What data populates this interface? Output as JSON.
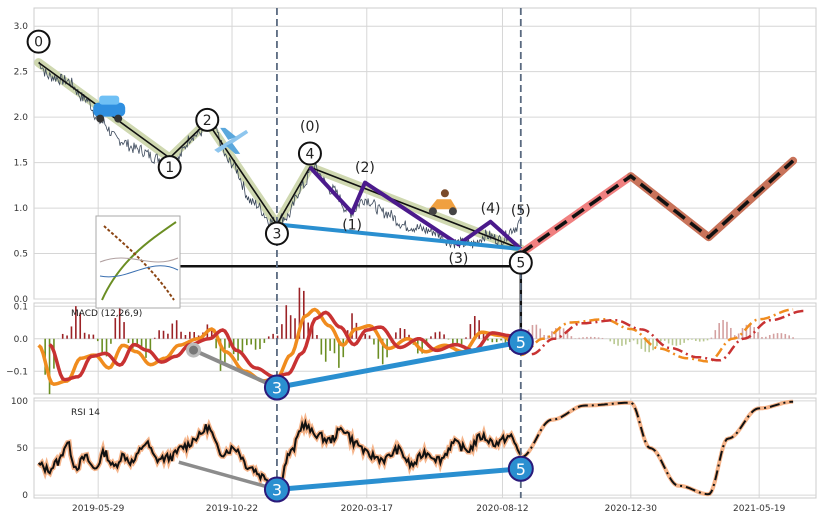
{
  "chart_data": [
    {
      "type": "line",
      "panel": "price",
      "ylim": [
        0,
        3.2
      ],
      "yticks": [
        "0.0",
        "0.5",
        "1.0",
        "1.5",
        "2.0",
        "2.5",
        "3.0"
      ],
      "x_range": [
        "2019-03-20",
        "2021-07-20"
      ],
      "xtick_labels": [
        "2019-05-29",
        "2019-10-22",
        "2020-03-17",
        "2020-08-12",
        "2020-12-30",
        "2021-05-19"
      ],
      "xtick_dates": [
        "2019-05-29",
        "2019-10-22",
        "2020-03-17",
        "2020-08-12",
        "2020-12-30",
        "2021-05-19"
      ],
      "vlines": [
        "2019-12-10",
        "2020-09-01"
      ],
      "price_anchors": [
        {
          "x": "2019-03-25",
          "y": 2.6
        },
        {
          "x": "2019-04-05",
          "y": 2.45
        },
        {
          "x": "2019-04-25",
          "y": 2.4
        },
        {
          "x": "2019-05-15",
          "y": 2.2
        },
        {
          "x": "2019-06-01",
          "y": 1.95
        },
        {
          "x": "2019-06-20",
          "y": 1.75
        },
        {
          "x": "2019-07-10",
          "y": 1.65
        },
        {
          "x": "2019-08-01",
          "y": 1.55
        },
        {
          "x": "2019-08-20",
          "y": 1.5
        },
        {
          "x": "2019-09-10",
          "y": 1.8
        },
        {
          "x": "2019-09-30",
          "y": 1.9
        },
        {
          "x": "2019-10-20",
          "y": 1.5
        },
        {
          "x": "2019-11-15",
          "y": 1.05
        },
        {
          "x": "2019-12-05",
          "y": 0.85
        },
        {
          "x": "2019-12-20",
          "y": 0.9
        },
        {
          "x": "2020-01-08",
          "y": 1.25
        },
        {
          "x": "2020-01-18",
          "y": 1.45
        },
        {
          "x": "2020-02-08",
          "y": 1.2
        },
        {
          "x": "2020-02-28",
          "y": 0.95
        },
        {
          "x": "2020-03-15",
          "y": 1.1
        },
        {
          "x": "2020-04-05",
          "y": 0.95
        },
        {
          "x": "2020-05-01",
          "y": 0.8
        },
        {
          "x": "2020-05-25",
          "y": 0.75
        },
        {
          "x": "2020-06-20",
          "y": 0.62
        },
        {
          "x": "2020-07-10",
          "y": 0.6
        },
        {
          "x": "2020-07-25",
          "y": 0.7
        },
        {
          "x": "2020-08-10",
          "y": 0.65
        },
        {
          "x": "2020-08-25",
          "y": 0.78
        },
        {
          "x": "2020-09-01",
          "y": 0.85
        }
      ],
      "wave_main": [
        {
          "x": "2019-03-25",
          "y": 2.6
        },
        {
          "x": "2019-08-15",
          "y": 1.55
        },
        {
          "x": "2019-09-25",
          "y": 1.95
        },
        {
          "x": "2019-12-10",
          "y": 0.82
        },
        {
          "x": "2020-01-15",
          "y": 1.45
        },
        {
          "x": "2020-09-01",
          "y": 0.55
        }
      ],
      "wave_sub": [
        {
          "x": "2020-01-15",
          "y": 1.45
        },
        {
          "x": "2020-03-01",
          "y": 0.95
        },
        {
          "x": "2020-03-15",
          "y": 1.28
        },
        {
          "x": "2020-06-25",
          "y": 0.6
        },
        {
          "x": "2020-07-30",
          "y": 0.85
        },
        {
          "x": "2020-09-01",
          "y": 0.55
        }
      ],
      "wave_channel": [
        {
          "x": "2019-12-10",
          "y": 0.82
        },
        {
          "x": "2020-09-01",
          "y": 0.55
        }
      ],
      "projection": [
        {
          "x": "2020-09-01",
          "y": 0.5
        },
        {
          "x": "2020-12-30",
          "y": 1.35
        },
        {
          "x": "2021-03-25",
          "y": 0.68
        },
        {
          "x": "2021-06-25",
          "y": 1.52
        }
      ],
      "hline": {
        "x_from": "2019-07-05",
        "x_to": "2020-09-01",
        "y": 0.36
      },
      "wave_labels": [
        {
          "x": "2019-03-25",
          "y": 2.83,
          "text": "0",
          "circle": true
        },
        {
          "x": "2019-08-15",
          "y": 1.45,
          "text": "1",
          "circle": true
        },
        {
          "x": "2019-09-25",
          "y": 1.97,
          "text": "2",
          "circle": true
        },
        {
          "x": "2019-12-10",
          "y": 0.72,
          "text": "3",
          "circle": true
        },
        {
          "x": "2020-01-15",
          "y": 1.6,
          "text": "4",
          "circle": true
        },
        {
          "x": "2020-09-01",
          "y": 0.4,
          "text": "5",
          "circle": true
        },
        {
          "x": "2020-01-15",
          "y": 1.9,
          "text": "(0)",
          "circle": false
        },
        {
          "x": "2020-03-01",
          "y": 0.82,
          "text": "(1)",
          "circle": false
        },
        {
          "x": "2020-03-15",
          "y": 1.45,
          "text": "(2)",
          "circle": false
        },
        {
          "x": "2020-06-25",
          "y": 0.45,
          "text": "(3)",
          "circle": false
        },
        {
          "x": "2020-07-30",
          "y": 1.0,
          "text": "(4)",
          "circle": false
        },
        {
          "x": "2020-09-01",
          "y": 0.98,
          "text": "(5)",
          "circle": false
        }
      ],
      "icons": [
        {
          "x": "2019-06-10",
          "y": 2.05,
          "name": "car-icon"
        },
        {
          "x": "2019-10-20",
          "y": 1.75,
          "name": "airplane-icon"
        },
        {
          "x": "2020-06-08",
          "y": 1.03,
          "name": "scooter-icon"
        }
      ]
    },
    {
      "type": "line",
      "panel": "macd",
      "label": "MACD (12,26,9)",
      "ylim": [
        -0.17,
        0.11
      ],
      "yticks": [
        "0.1",
        "0.0",
        "−0.1"
      ],
      "ytick_values": [
        0.1,
        0.0,
        -0.1
      ],
      "macd_anchors": [
        {
          "x": "2019-03-25",
          "y": -0.02
        },
        {
          "x": "2019-04-10",
          "y": -0.14
        },
        {
          "x": "2019-04-25",
          "y": -0.13
        },
        {
          "x": "2019-05-10",
          "y": -0.06
        },
        {
          "x": "2019-05-25",
          "y": -0.05
        },
        {
          "x": "2019-06-10",
          "y": -0.09
        },
        {
          "x": "2019-06-25",
          "y": -0.02
        },
        {
          "x": "2019-07-10",
          "y": -0.04
        },
        {
          "x": "2019-07-25",
          "y": -0.08
        },
        {
          "x": "2019-08-10",
          "y": -0.06
        },
        {
          "x": "2019-08-25",
          "y": -0.02
        },
        {
          "x": "2019-09-15",
          "y": 0.0
        },
        {
          "x": "2019-09-30",
          "y": 0.03
        },
        {
          "x": "2019-10-15",
          "y": -0.04
        },
        {
          "x": "2019-11-05",
          "y": -0.1
        },
        {
          "x": "2019-11-25",
          "y": -0.13
        },
        {
          "x": "2019-12-10",
          "y": -0.12
        },
        {
          "x": "2019-12-25",
          "y": -0.05
        },
        {
          "x": "2020-01-10",
          "y": 0.07
        },
        {
          "x": "2020-01-20",
          "y": 0.09
        },
        {
          "x": "2020-02-05",
          "y": 0.04
        },
        {
          "x": "2020-02-20",
          "y": -0.02
        },
        {
          "x": "2020-03-05",
          "y": 0.03
        },
        {
          "x": "2020-03-20",
          "y": 0.04
        },
        {
          "x": "2020-04-10",
          "y": -0.03
        },
        {
          "x": "2020-05-01",
          "y": 0.0
        },
        {
          "x": "2020-05-20",
          "y": -0.04
        },
        {
          "x": "2020-06-10",
          "y": -0.02
        },
        {
          "x": "2020-06-30",
          "y": -0.04
        },
        {
          "x": "2020-07-20",
          "y": 0.02
        },
        {
          "x": "2020-08-10",
          "y": 0.01
        },
        {
          "x": "2020-09-01",
          "y": -0.03
        }
      ],
      "proj_anchors": [
        {
          "x": "2020-09-01",
          "y": -0.05
        },
        {
          "x": "2020-09-25",
          "y": 0.0
        },
        {
          "x": "2020-10-25",
          "y": 0.05
        },
        {
          "x": "2020-12-01",
          "y": 0.06
        },
        {
          "x": "2020-12-30",
          "y": 0.03
        },
        {
          "x": "2021-01-30",
          "y": -0.03
        },
        {
          "x": "2021-03-01",
          "y": -0.06
        },
        {
          "x": "2021-03-25",
          "y": -0.07
        },
        {
          "x": "2021-04-20",
          "y": 0.0
        },
        {
          "x": "2021-05-19",
          "y": 0.06
        },
        {
          "x": "2021-06-25",
          "y": 0.09
        }
      ],
      "divergence": [
        {
          "x": "2019-12-10",
          "y": -0.15
        },
        {
          "x": "2020-09-01",
          "y": -0.01
        }
      ],
      "gray_line": [
        {
          "x": "2019-09-10",
          "y": -0.035
        },
        {
          "x": "2019-12-10",
          "y": -0.15
        }
      ],
      "markers": [
        {
          "x": "2019-12-10",
          "y": -0.15,
          "text": "3"
        },
        {
          "x": "2020-09-01",
          "y": -0.01,
          "text": "5"
        }
      ]
    },
    {
      "type": "line",
      "panel": "rsi",
      "label": "RSI 14",
      "ylim": [
        -3,
        103
      ],
      "yticks": [
        "100",
        "50",
        "0"
      ],
      "ytick_values": [
        100,
        50,
        0
      ],
      "rsi_anchors": [
        {
          "x": "2019-03-25",
          "y": 32
        },
        {
          "x": "2019-04-05",
          "y": 27
        },
        {
          "x": "2019-04-15",
          "y": 35
        },
        {
          "x": "2019-04-25",
          "y": 55
        },
        {
          "x": "2019-05-05",
          "y": 30
        },
        {
          "x": "2019-05-15",
          "y": 40
        },
        {
          "x": "2019-05-25",
          "y": 28
        },
        {
          "x": "2019-06-05",
          "y": 45
        },
        {
          "x": "2019-06-15",
          "y": 30
        },
        {
          "x": "2019-06-25",
          "y": 42
        },
        {
          "x": "2019-07-05",
          "y": 35
        },
        {
          "x": "2019-07-20",
          "y": 55
        },
        {
          "x": "2019-08-01",
          "y": 38
        },
        {
          "x": "2019-08-15",
          "y": 40
        },
        {
          "x": "2019-09-01",
          "y": 52
        },
        {
          "x": "2019-09-15",
          "y": 62
        },
        {
          "x": "2019-09-25",
          "y": 72
        },
        {
          "x": "2019-10-10",
          "y": 45
        },
        {
          "x": "2019-10-25",
          "y": 50
        },
        {
          "x": "2019-11-10",
          "y": 30
        },
        {
          "x": "2019-11-25",
          "y": 20
        },
        {
          "x": "2019-12-10",
          "y": 8
        },
        {
          "x": "2019-12-25",
          "y": 45
        },
        {
          "x": "2020-01-08",
          "y": 75
        },
        {
          "x": "2020-01-20",
          "y": 65
        },
        {
          "x": "2020-02-05",
          "y": 58
        },
        {
          "x": "2020-02-20",
          "y": 70
        },
        {
          "x": "2020-03-05",
          "y": 55
        },
        {
          "x": "2020-03-20",
          "y": 42
        },
        {
          "x": "2020-04-05",
          "y": 38
        },
        {
          "x": "2020-04-20",
          "y": 48
        },
        {
          "x": "2020-05-05",
          "y": 32
        },
        {
          "x": "2020-05-20",
          "y": 45
        },
        {
          "x": "2020-06-05",
          "y": 38
        },
        {
          "x": "2020-06-20",
          "y": 55
        },
        {
          "x": "2020-07-05",
          "y": 48
        },
        {
          "x": "2020-07-20",
          "y": 62
        },
        {
          "x": "2020-08-05",
          "y": 55
        },
        {
          "x": "2020-08-20",
          "y": 62
        },
        {
          "x": "2020-09-01",
          "y": 45
        }
      ],
      "proj_anchors": [
        {
          "x": "2020-09-01",
          "y": 40
        },
        {
          "x": "2020-10-05",
          "y": 80
        },
        {
          "x": "2020-11-10",
          "y": 95
        },
        {
          "x": "2020-12-30",
          "y": 98
        },
        {
          "x": "2021-01-20",
          "y": 50
        },
        {
          "x": "2021-02-20",
          "y": 10
        },
        {
          "x": "2021-03-25",
          "y": 1
        },
        {
          "x": "2021-04-15",
          "y": 60
        },
        {
          "x": "2021-05-19",
          "y": 92
        },
        {
          "x": "2021-06-25",
          "y": 99
        }
      ],
      "divergence": [
        {
          "x": "2019-12-10",
          "y": 6
        },
        {
          "x": "2020-09-01",
          "y": 28
        }
      ],
      "gray_line": [
        {
          "x": "2019-08-25",
          "y": 35
        },
        {
          "x": "2019-12-10",
          "y": 6
        }
      ],
      "markers": [
        {
          "x": "2019-12-10",
          "y": 6,
          "text": "3"
        },
        {
          "x": "2020-09-01",
          "y": 28,
          "text": "5"
        }
      ]
    }
  ]
}
